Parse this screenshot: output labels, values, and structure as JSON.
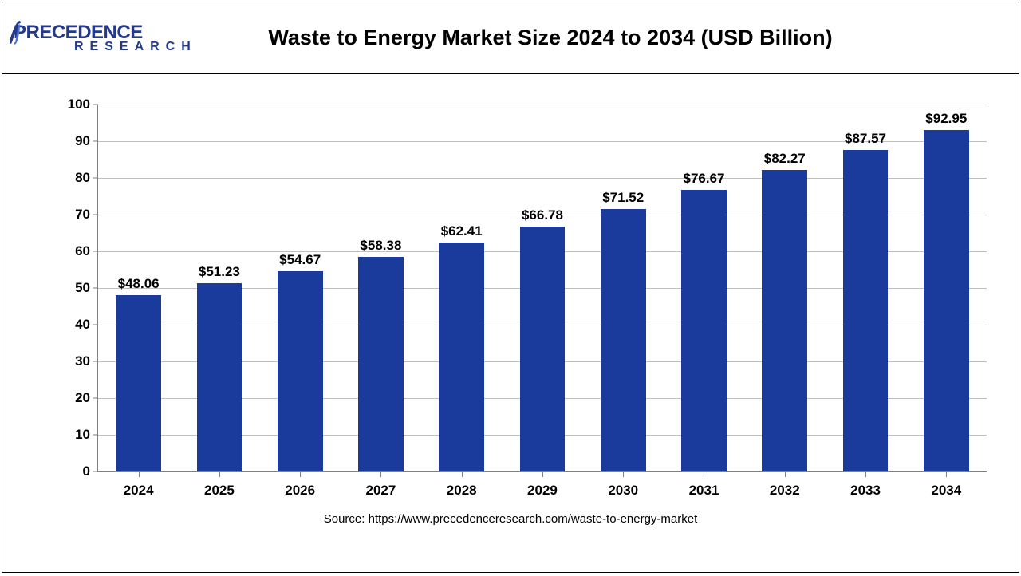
{
  "logo": {
    "line1": "PRECEDENCE",
    "line2": "RESEARCH"
  },
  "chart": {
    "type": "bar",
    "title": "Waste to Energy Market Size 2024 to 2034 (USD Billion)",
    "title_fontsize": 27,
    "title_fontweight": 700,
    "title_color": "#000000",
    "categories": [
      "2024",
      "2025",
      "2026",
      "2027",
      "2028",
      "2029",
      "2030",
      "2031",
      "2032",
      "2033",
      "2034"
    ],
    "values": [
      48.06,
      51.23,
      54.67,
      58.38,
      62.41,
      66.78,
      71.52,
      76.67,
      82.27,
      87.57,
      92.95
    ],
    "value_labels": [
      "$48.06",
      "$51.23",
      "$54.67",
      "$58.38",
      "$62.41",
      "$66.78",
      "$71.52",
      "$76.67",
      "$82.27",
      "$87.57",
      "$92.95"
    ],
    "bar_color": "#1a3b9c",
    "ylim": [
      0,
      100
    ],
    "ytick_step": 10,
    "yticks": [
      0,
      10,
      20,
      30,
      40,
      50,
      60,
      70,
      80,
      90,
      100
    ],
    "grid_color": "#bfbfbf",
    "axis_color": "#808080",
    "background_color": "#ffffff",
    "label_fontsize": 17,
    "label_fontweight": 700,
    "label_color": "#000000",
    "bar_width": 0.56,
    "source": "Source: https://www.precedenceresearch.com/waste-to-energy-market",
    "source_fontsize": 15,
    "source_color": "#000000"
  }
}
